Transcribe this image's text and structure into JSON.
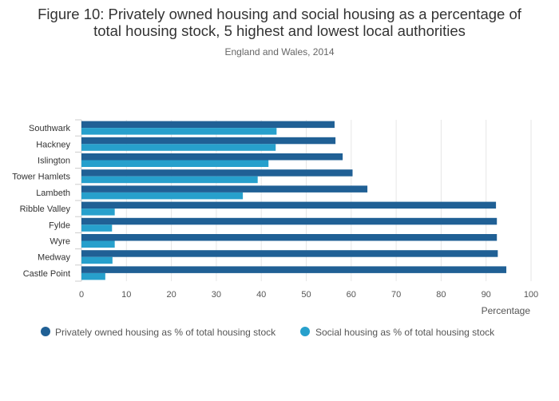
{
  "chart_data": {
    "type": "bar",
    "orientation": "horizontal",
    "title_line1": "Figure 10: Privately owned housing and social housing as a percentage of",
    "title_line2": "total housing stock, 5 highest and lowest local authorities",
    "subtitle": "England and Wales, 2014",
    "xlabel": "Percentage",
    "ylabel": "",
    "xlim": [
      0,
      100
    ],
    "xticks": [
      0,
      10,
      20,
      30,
      40,
      50,
      60,
      70,
      80,
      90,
      100
    ],
    "grid": true,
    "legend_position": "bottom",
    "categories": [
      "Southwark",
      "Hackney",
      "Islington",
      "Tower Hamlets",
      "Lambeth",
      "Ribble Valley",
      "Fylde",
      "Wyre",
      "Medway",
      "Castle Point"
    ],
    "series": [
      {
        "name": "Privately owned housing as % of total housing stock",
        "color": "#206095",
        "values": [
          56.3,
          56.5,
          58.1,
          60.3,
          63.6,
          92.2,
          92.4,
          92.4,
          92.6,
          94.5
        ]
      },
      {
        "name": "Social housing as % of total housing stock",
        "color": "#27a0cc",
        "values": [
          43.4,
          43.2,
          41.6,
          39.2,
          35.9,
          7.4,
          6.8,
          7.4,
          6.9,
          5.3
        ]
      }
    ]
  }
}
